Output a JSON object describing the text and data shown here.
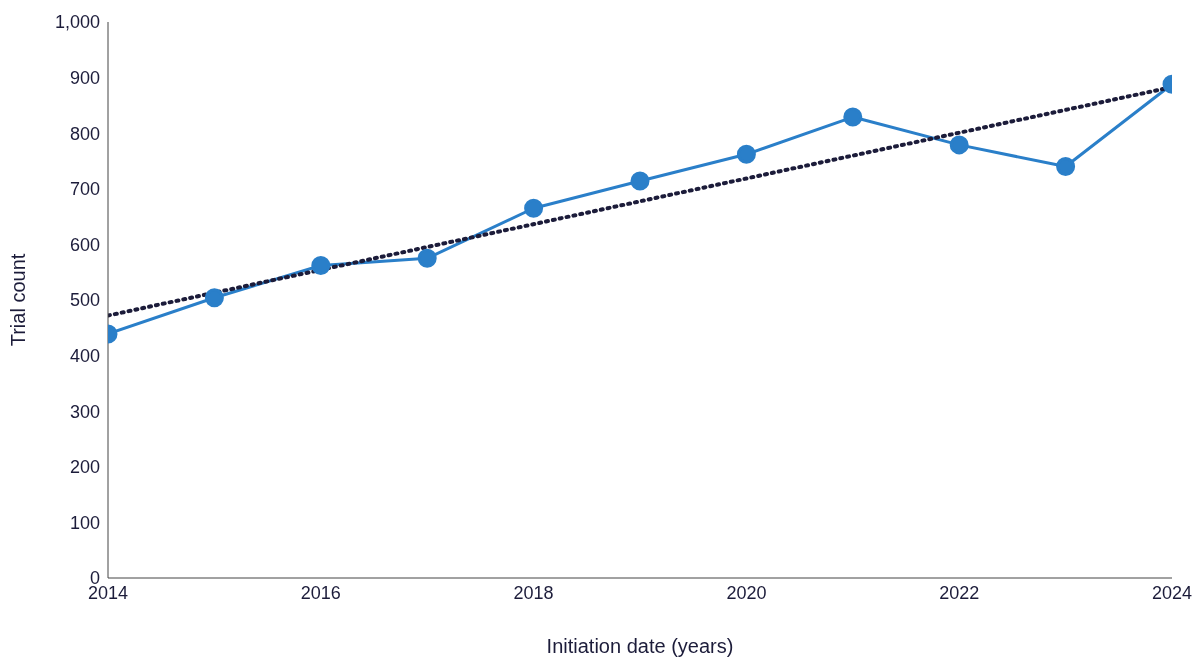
{
  "chart_data": {
    "type": "line",
    "xlabel": "Initiation date (years)",
    "ylabel": "Trial count",
    "x": [
      2014,
      2015,
      2016,
      2017,
      2018,
      2019,
      2020,
      2021,
      2022,
      2023,
      2024
    ],
    "series": [
      {
        "color": "#2a7fc9",
        "marker": "circle",
        "line_style": "solid",
        "values": [
          439,
          504,
          562,
          575,
          665,
          714,
          762,
          829,
          779,
          740,
          888
        ]
      },
      {
        "type": "line",
        "color": "#1c1c3a",
        "marker": "none",
        "line_style": "dotted",
        "x": [
          2014,
          2024
        ],
        "values": [
          472,
          883
        ]
      }
    ],
    "xlim": [
      2014,
      2024
    ],
    "xticks": [
      2014,
      2016,
      2018,
      2020,
      2022,
      2024
    ],
    "ylim": [
      0,
      1000
    ],
    "yticks": [
      0,
      100,
      200,
      300,
      400,
      500,
      600,
      700,
      800,
      900,
      {
        "value": 1000,
        "label": "1,000"
      }
    ]
  }
}
